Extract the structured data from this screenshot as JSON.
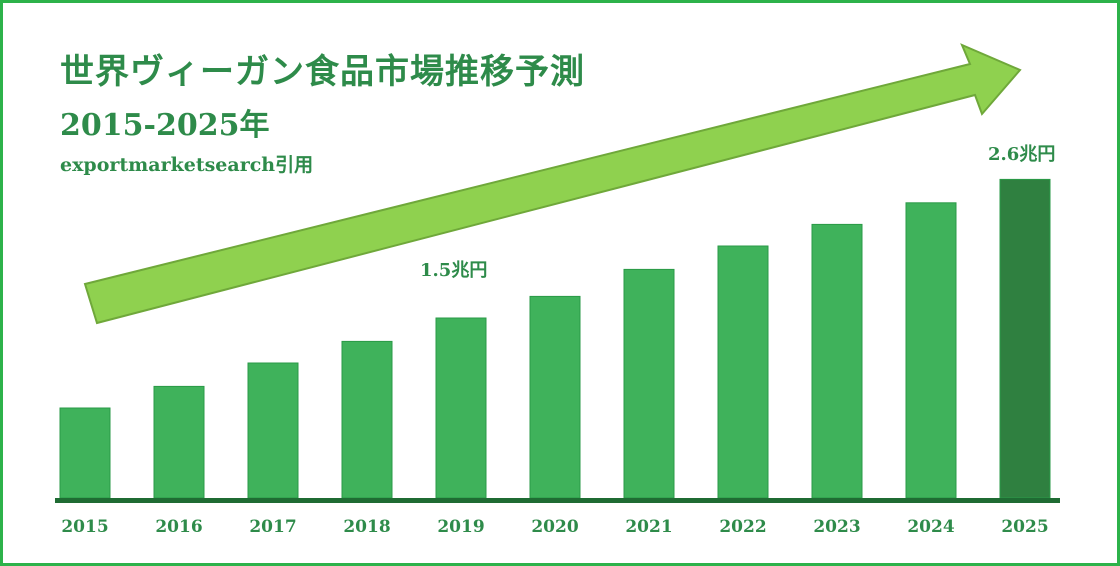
{
  "title": "世界ヴィーガン食品市場推移予測",
  "subtitle": "2015-2025年",
  "source": "exportmarketsearch引用",
  "colors": {
    "bar": "#3fb25b",
    "bar_highlight": "#2f8040",
    "arrow": "#8fd14f",
    "baseline": "#1f6b33",
    "frame": "#2db24a",
    "text": "#2e8b4a"
  },
  "annotations": [
    {
      "category": "2019",
      "text": "1.5兆円"
    },
    {
      "category": "2025",
      "text": "2.6兆円"
    }
  ],
  "chart_data": {
    "type": "bar",
    "title": "世界ヴィーガン食品市場推移予測",
    "subtitle": "2015-2025年",
    "categories": [
      "2015",
      "2016",
      "2017",
      "2018",
      "2019",
      "2020",
      "2021",
      "2022",
      "2023",
      "2024",
      "2025"
    ],
    "values": [
      0.5,
      0.62,
      0.75,
      0.87,
      1.0,
      1.12,
      1.27,
      1.4,
      1.52,
      1.64,
      1.77
    ],
    "annotations": [
      {
        "category": "2019",
        "label": "1.5兆円"
      },
      {
        "category": "2025",
        "label": "2.6兆円"
      }
    ],
    "highlight": "2025",
    "y_axis": "hidden",
    "grid": false,
    "trend_arrow": true
  }
}
